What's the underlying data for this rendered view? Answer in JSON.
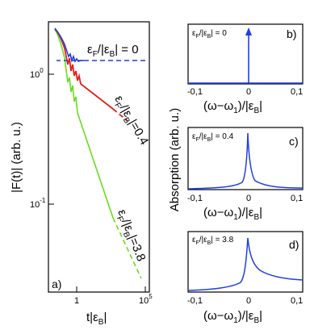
{
  "figure": {
    "left_panel": {
      "letter": "a)",
      "ylabel": "|F(t)| (arb. u.)",
      "xlabel": "t|ε",
      "xlabel_sub": "B",
      "xlabel_end": "|",
      "yticks": {
        "upper": "10",
        "upper_exp": "0",
        "lower": "10",
        "lower_exp": "-1"
      },
      "xticks": {
        "first": "1",
        "last": "10",
        "last_exp": "5"
      },
      "annotations": {
        "zero": "ε",
        "zero_sub": "F",
        "zero_mid": "/|ε",
        "zero_sub2": "B",
        "zero_end": "| = 0",
        "point4": "=0.4",
        "three8": "=3.8"
      }
    },
    "right_panels": {
      "ylabel": "Absorption (arb. u.)",
      "xlabel_main": "(ω−ω",
      "xlabel_sub": "1",
      "xlabel_mid": ")/|ε",
      "xlabel_sub2": "B",
      "xlabel_end": "|",
      "xticks": [
        "-0,1",
        "0",
        "0,1"
      ],
      "panels": [
        {
          "letter": "b)",
          "label": "ε",
          "label_sub": "F",
          "label_mid": "/|ε",
          "label_sub2": "B",
          "label_end": "| = 0"
        },
        {
          "letter": "c)",
          "label": "ε",
          "label_sub": "F",
          "label_mid": "/|ε",
          "label_sub2": "B",
          "label_end": "| = 0.4"
        },
        {
          "letter": "d)",
          "label": "ε",
          "label_sub": "F",
          "label_mid": "/|ε",
          "label_sub2": "B",
          "label_end": "| = 3.8"
        }
      ]
    },
    "colors": {
      "blue": "#1f3fe0",
      "red": "#e0201a",
      "green": "#6bdc1c",
      "black": "#000000"
    }
  },
  "chart_data": [
    {
      "type": "line",
      "panel": "a",
      "xscale": "log",
      "yscale": "log",
      "xlabel": "t|εB|",
      "ylabel": "|F(t)| (arb. u.)",
      "series": [
        {
          "name": "εF/|εB| = 0",
          "x": [
            0.2,
            0.4,
            1,
            3,
            10,
            100,
            10000,
            100000
          ],
          "y": [
            2.1,
            1.5,
            1.25,
            1.2,
            1.2,
            1.2,
            1.2,
            1.2
          ]
        },
        {
          "name": "εF/|εB| = 0.4",
          "x": [
            0.2,
            0.4,
            1,
            10,
            100,
            10000,
            100000
          ],
          "y": [
            2.1,
            1.4,
            1.0,
            0.8,
            0.7,
            0.55,
            0.5
          ]
        },
        {
          "name": "εF/|εB| = 3.8",
          "x": [
            0.2,
            0.4,
            1,
            10,
            100,
            10000,
            100000
          ],
          "y": [
            2.1,
            1.1,
            0.75,
            0.35,
            0.16,
            0.04,
            0.02
          ]
        }
      ]
    },
    {
      "type": "line",
      "panel": "b",
      "xlabel": "(ω−ω1)/|εB|",
      "ylabel": "Absorption (arb. u.)",
      "xlim": [
        -0.12,
        0.12
      ],
      "x": [
        -0.12,
        0,
        0,
        0,
        0.12
      ],
      "y": [
        0,
        0,
        1,
        0,
        0
      ]
    },
    {
      "type": "line",
      "panel": "c",
      "xlabel": "(ω−ω1)/|εB|",
      "ylabel": "Absorption (arb. u.)",
      "xlim": [
        -0.12,
        0.12
      ],
      "x": [
        -0.12,
        -0.05,
        -0.02,
        -0.005,
        0,
        0.002,
        0.01,
        0.03,
        0.06,
        0.12
      ],
      "y": [
        0.01,
        0.03,
        0.07,
        0.2,
        1,
        0.6,
        0.2,
        0.08,
        0.04,
        0.02
      ]
    },
    {
      "type": "line",
      "panel": "d",
      "xlabel": "(ω−ω1)/|εB|",
      "ylabel": "Absorption (arb. u.)",
      "xlim": [
        -0.12,
        0.12
      ],
      "x": [
        -0.12,
        -0.05,
        -0.02,
        -0.005,
        0,
        0.005,
        0.02,
        0.05,
        0.1,
        0.12
      ],
      "y": [
        0.01,
        0.03,
        0.08,
        0.2,
        1,
        0.75,
        0.5,
        0.35,
        0.25,
        0.22
      ]
    }
  ]
}
